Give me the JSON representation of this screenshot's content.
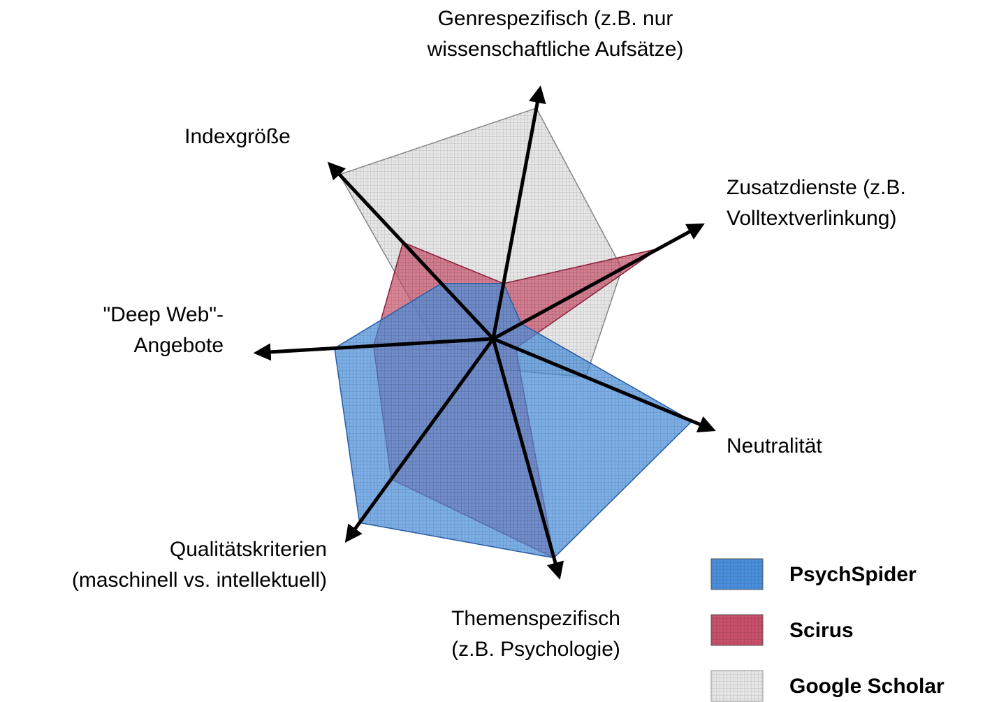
{
  "chart_data": {
    "type": "radar",
    "categories": [
      [
        "Genrespezifisch (z.B. nur",
        "wissenschaftliche Aufsätze)"
      ],
      [
        "Zusatzdienste (z.B.",
        "Volltextverlinkung)"
      ],
      [
        "Neutralität"
      ],
      [
        "Themenspezifisch",
        "(z.B. Psychologie)"
      ],
      [
        "Qualitätskriterien",
        "(maschinell vs. intellektuell)"
      ],
      [
        "\"Deep Web\"-",
        "Angebote"
      ],
      [
        "Indexgröße"
      ]
    ],
    "rlim": [
      0,
      1
    ],
    "series": [
      {
        "name": "PsychSpider",
        "color": "#4a8fdc",
        "values": [
          0.23,
          0.13,
          0.88,
          0.93,
          0.93,
          0.65,
          0.31
        ]
      },
      {
        "name": "Scirus",
        "color": "#c8506a",
        "values": [
          0.23,
          0.77,
          0.1,
          0.93,
          0.71,
          0.49,
          0.54
        ]
      },
      {
        "name": "Google Scholar",
        "color": "#e6e6e6",
        "values": [
          0.96,
          0.6,
          0.41,
          0.13,
          0.08,
          0.24,
          0.92
        ]
      }
    ]
  }
}
